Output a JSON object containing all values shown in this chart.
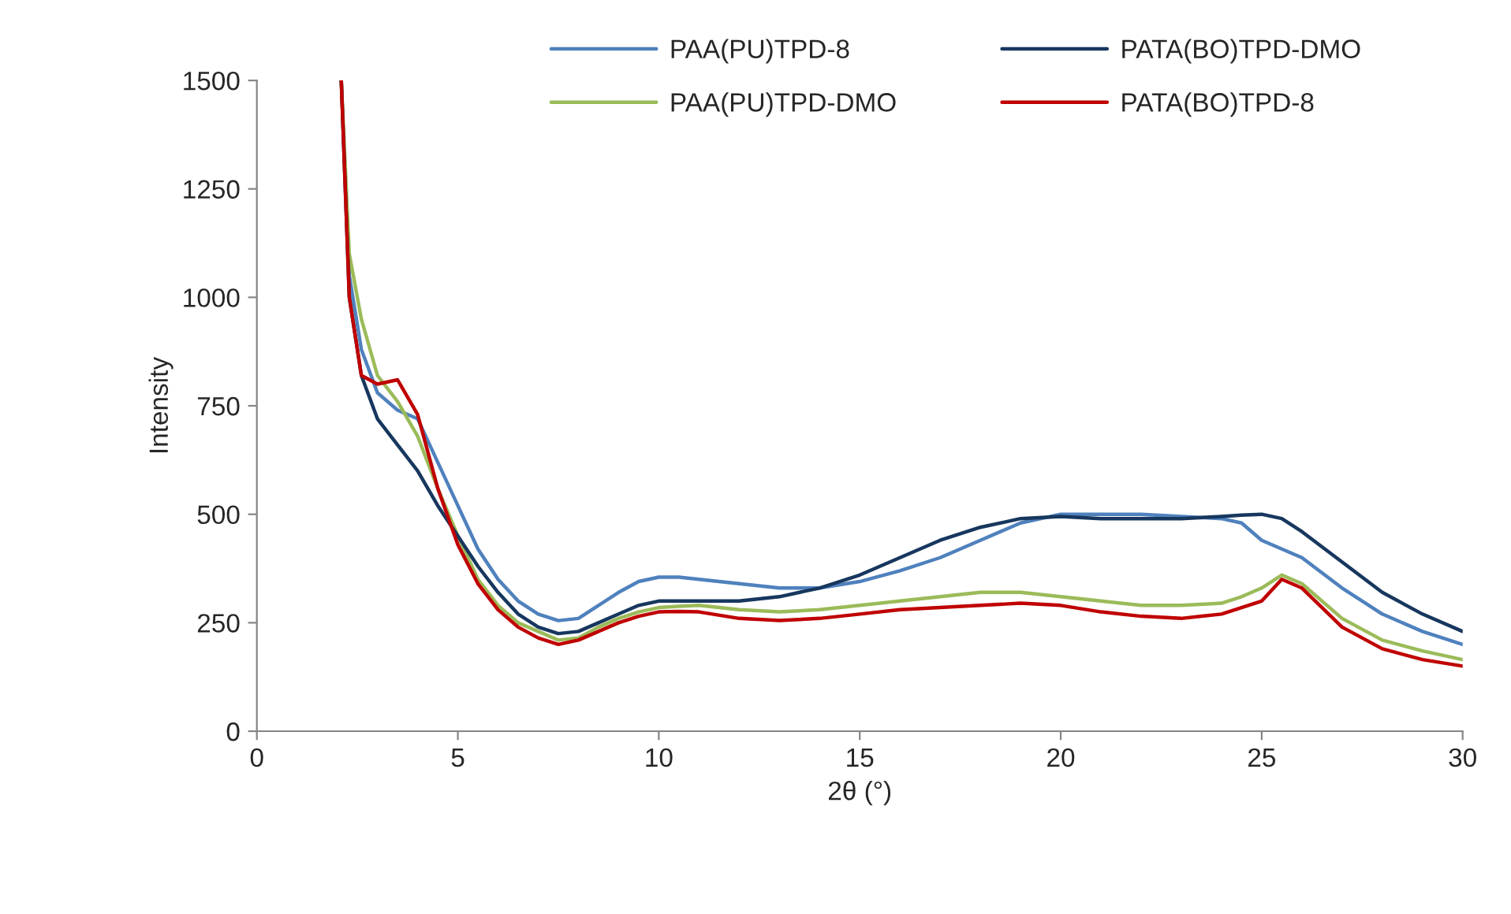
{
  "chart_data": {
    "type": "line",
    "xlabel": "2θ (°)",
    "ylabel": "Intensity",
    "xlim": [
      0,
      30
    ],
    "ylim": [
      0,
      1500
    ],
    "xticks": [
      0,
      5,
      10,
      15,
      20,
      25,
      30
    ],
    "yticks": [
      0,
      250,
      500,
      750,
      1000,
      1250,
      1500
    ],
    "grid": false,
    "legend": "top",
    "marker": "none",
    "line_style": "solid",
    "x": [
      2.1,
      2.3,
      2.6,
      3,
      3.5,
      4,
      4.5,
      5,
      5.5,
      6,
      6.5,
      7,
      7.5,
      8,
      8.5,
      9,
      9.5,
      10,
      10.5,
      11,
      12,
      13,
      14,
      15,
      16,
      17,
      18,
      19,
      20,
      21,
      22,
      23,
      24,
      24.5,
      25,
      25.5,
      26,
      27,
      28,
      29,
      30
    ],
    "series": [
      {
        "name": "PAA(PU)TPD-8",
        "color": "#4f81bd",
        "values": [
          1500,
          1050,
          880,
          780,
          740,
          720,
          620,
          520,
          420,
          350,
          300,
          270,
          255,
          260,
          290,
          320,
          345,
          355,
          355,
          350,
          340,
          330,
          330,
          345,
          370,
          400,
          440,
          480,
          500,
          500,
          500,
          495,
          490,
          480,
          440,
          420,
          400,
          330,
          270,
          230,
          200
        ]
      },
      {
        "name": "PAA(PU)TPD-DMO",
        "color": "#9bbb59",
        "values": [
          1500,
          1100,
          950,
          820,
          760,
          680,
          560,
          450,
          350,
          290,
          250,
          230,
          210,
          215,
          240,
          260,
          275,
          285,
          288,
          290,
          280,
          275,
          280,
          290,
          300,
          310,
          320,
          320,
          310,
          300,
          290,
          290,
          295,
          310,
          330,
          360,
          340,
          260,
          210,
          185,
          165
        ]
      },
      {
        "name": "PATA(BO)TPD-DMO",
        "color": "#17375e",
        "values": [
          1500,
          1000,
          820,
          720,
          660,
          600,
          520,
          450,
          380,
          320,
          270,
          240,
          225,
          230,
          250,
          270,
          290,
          300,
          300,
          300,
          300,
          310,
          330,
          360,
          400,
          440,
          470,
          490,
          495,
          490,
          490,
          490,
          495,
          498,
          500,
          490,
          460,
          390,
          320,
          270,
          230
        ]
      },
      {
        "name": "PATA(BO)TPD-8",
        "color": "#c00000",
        "values": [
          1500,
          1000,
          820,
          800,
          810,
          730,
          560,
          430,
          340,
          280,
          240,
          215,
          200,
          210,
          230,
          250,
          265,
          275,
          276,
          275,
          260,
          255,
          260,
          270,
          280,
          285,
          290,
          295,
          290,
          275,
          265,
          260,
          270,
          285,
          300,
          350,
          330,
          240,
          190,
          165,
          150
        ]
      }
    ]
  }
}
